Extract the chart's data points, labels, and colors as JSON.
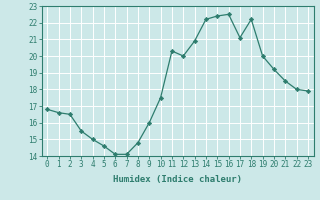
{
  "title": "",
  "x_values": [
    0,
    1,
    2,
    3,
    4,
    5,
    6,
    7,
    8,
    9,
    10,
    11,
    12,
    13,
    14,
    15,
    16,
    17,
    18,
    19,
    20,
    21,
    22,
    23
  ],
  "y_values": [
    16.8,
    16.6,
    16.5,
    15.5,
    15.0,
    14.6,
    14.1,
    14.1,
    14.8,
    16.0,
    17.5,
    20.3,
    20.0,
    20.9,
    22.2,
    22.4,
    22.5,
    21.1,
    22.2,
    20.0,
    19.2,
    18.5,
    18.0,
    17.9
  ],
  "xlabel": "Humidex (Indice chaleur)",
  "ylim": [
    14,
    23
  ],
  "xlim": [
    -0.5,
    23.5
  ],
  "yticks": [
    14,
    15,
    16,
    17,
    18,
    19,
    20,
    21,
    22,
    23
  ],
  "xticks": [
    0,
    1,
    2,
    3,
    4,
    5,
    6,
    7,
    8,
    9,
    10,
    11,
    12,
    13,
    14,
    15,
    16,
    17,
    18,
    19,
    20,
    21,
    22,
    23
  ],
  "line_color": "#2e7d6e",
  "marker_color": "#2e7d6e",
  "bg_color": "#cce8e8",
  "grid_color": "#aad4d4",
  "axes_color": "#2e7d6e",
  "tick_fontsize": 5.5,
  "label_fontsize": 6.5
}
